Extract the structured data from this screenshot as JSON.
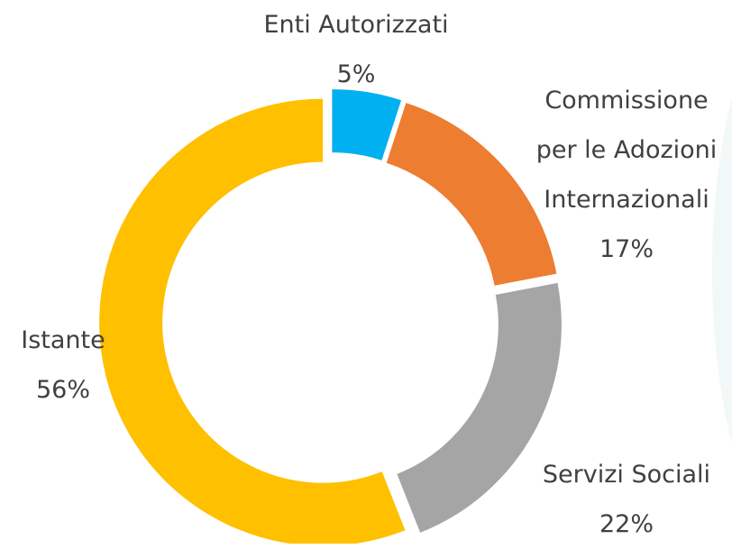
{
  "chart_data": {
    "type": "donut",
    "categories": [
      "Enti Autorizzati",
      "Commissione per le Adozioni Internazionali",
      "Servizi Sociali",
      "Istante"
    ],
    "values": [
      5,
      17,
      22,
      56
    ],
    "value_labels": [
      "5%",
      "17%",
      "22%",
      "56%"
    ],
    "colors": [
      "#00b0f0",
      "#ed7d31",
      "#a5a5a5",
      "#ffc000"
    ]
  }
}
